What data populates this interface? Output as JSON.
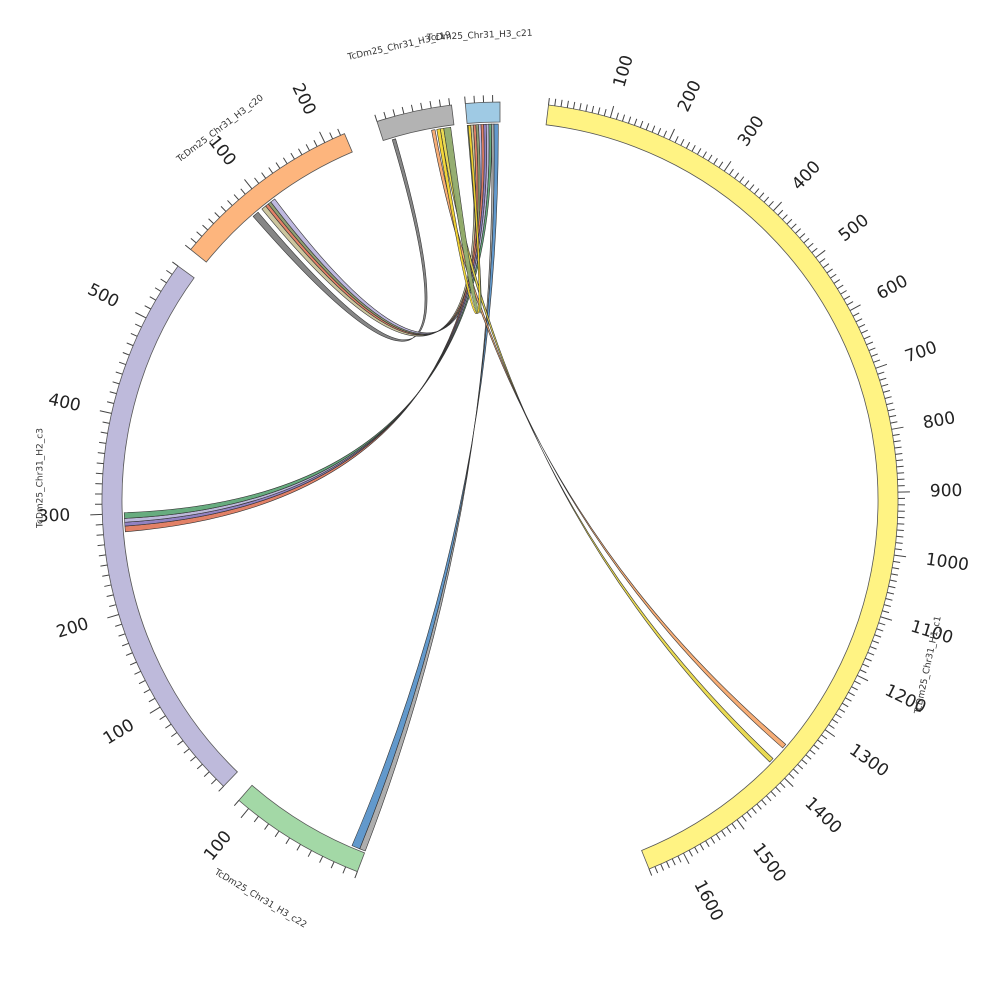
{
  "chromosomes": [
    {
      "id": "H1_c1",
      "label": "TcDm25_Chr31_H1_c1",
      "length": 1660,
      "color": "#fff383",
      "ticks": [
        100,
        200,
        300,
        400,
        500,
        600,
        700,
        800,
        900,
        1000,
        1100,
        1200,
        1300,
        1400,
        1500,
        1600
      ]
    },
    {
      "id": "H3_c22",
      "label": "TcDm25_Chr31_H3_c22",
      "length": 110,
      "color": "#a3d8a6",
      "ticks": [
        100
      ]
    },
    {
      "id": "H2_c3",
      "label": "TcDm25_Chr31_H2_c3",
      "length": 560,
      "color": "#bebadb",
      "ticks": [
        100,
        200,
        300,
        400,
        500
      ]
    },
    {
      "id": "H3_c20",
      "label": "TcDm25_Chr31_H3_c20",
      "length": 225,
      "color": "#fdb57d",
      "ticks": [
        100,
        200
      ]
    },
    {
      "id": "H3_c19",
      "label": "TcDm25_Chr31_H3_c19",
      "length": 82,
      "color": "#b3b3b3",
      "ticks": []
    },
    {
      "id": "H3_c21",
      "label": "TcDm25_Chr31_H3_c21",
      "length": 38,
      "color": "#9fcae4",
      "ticks": []
    }
  ],
  "links": [
    {
      "a": "H3_c20",
      "a1": 80,
      "a2": 88,
      "b": "H3_c19",
      "b1": 10,
      "b2": 14,
      "color": "#7f7f7f"
    },
    {
      "a": "H3_c20",
      "a1": 94,
      "a2": 100,
      "b": "H3_c21",
      "b1": 4,
      "b2": 7,
      "color": "#c9c39a"
    },
    {
      "a": "H3_c20",
      "a1": 100,
      "a2": 104,
      "b": "H3_c21",
      "b1": 7,
      "b2": 10,
      "color": "#e07a5f"
    },
    {
      "a": "H3_c20",
      "a1": 104,
      "a2": 108,
      "b": "H3_c21",
      "b1": 10,
      "b2": 13,
      "color": "#8a9a6a"
    },
    {
      "a": "H3_c20",
      "a1": 108,
      "a2": 114,
      "b": "H3_c21",
      "b1": 13,
      "b2": 16,
      "color": "#bcb5de"
    },
    {
      "a": "H2_c3",
      "a1": 281,
      "a2": 287,
      "b": "H3_c21",
      "b1": 16,
      "b2": 19,
      "color": "#e07a5f"
    },
    {
      "a": "H2_c3",
      "a1": 287,
      "a2": 291,
      "b": "H3_c21",
      "b1": 19,
      "b2": 22,
      "color": "#8b7bbf"
    },
    {
      "a": "H2_c3",
      "a1": 291,
      "a2": 295,
      "b": "H3_c21",
      "b1": 22,
      "b2": 25,
      "color": "#b9b5d9"
    },
    {
      "a": "H2_c3",
      "a1": 295,
      "a2": 301,
      "b": "H3_c21",
      "b1": 25,
      "b2": 28,
      "color": "#5fa878"
    },
    {
      "a": "H3_c22",
      "a1": 0,
      "a2": 5,
      "b": "H3_c21",
      "b1": 28,
      "b2": 31,
      "color": "#aaaaaa"
    },
    {
      "a": "H3_c22",
      "a1": 5,
      "a2": 12,
      "b": "H3_c21",
      "b1": 31,
      "b2": 36,
      "color": "#5a93c9"
    },
    {
      "a": "H1_c1",
      "a1": 1390,
      "a2": 1398,
      "b": "H3_c19",
      "b1": 66,
      "b2": 70,
      "color": "#e8d84a"
    },
    {
      "a": "H1_c1",
      "a1": 1358,
      "a2": 1366,
      "b": "H3_c19",
      "b1": 56,
      "b2": 60,
      "color": "#f7a96f"
    },
    {
      "a": "H3_c19",
      "a1": 70,
      "a2": 78,
      "b": "H3_c21",
      "b1": 0,
      "b2": 3,
      "color": "#8faa6a"
    },
    {
      "a": "H3_c19",
      "a1": 62,
      "a2": 66,
      "b": "H3_c21",
      "b1": 1,
      "b2": 4,
      "color": "#f2d42e"
    }
  ]
}
